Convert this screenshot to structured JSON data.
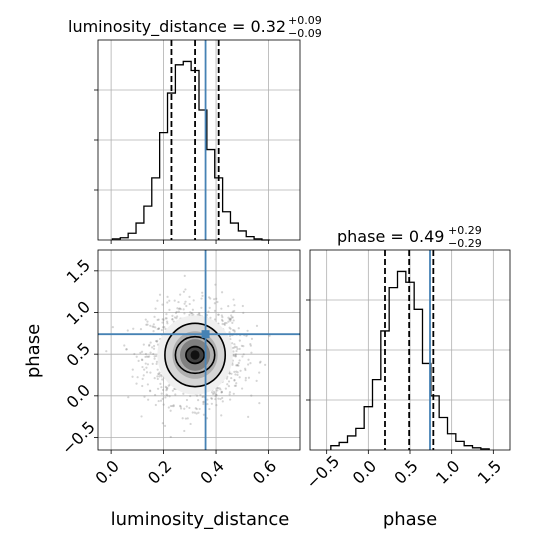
{
  "chart_data": [
    {
      "type": "histogram",
      "panel": "top-left",
      "title": {
        "base": "luminosity_distance = 0.32",
        "sup": "+0.09",
        "sub": "−0.09"
      },
      "x": [
        0.02,
        0.05,
        0.08,
        0.11,
        0.14,
        0.17,
        0.2,
        0.23,
        0.26,
        0.29,
        0.32,
        0.35,
        0.38,
        0.41,
        0.44,
        0.47,
        0.5,
        0.53,
        0.56,
        0.59
      ],
      "counts": [
        1,
        2,
        6,
        15,
        30,
        55,
        95,
        130,
        155,
        158,
        150,
        115,
        80,
        55,
        25,
        15,
        8,
        3,
        1,
        0
      ],
      "xlim": [
        -0.05,
        0.72
      ],
      "quantiles": [
        0.23,
        0.32,
        0.41
      ],
      "truth": 0.36,
      "grid": true
    },
    {
      "type": "histogram",
      "panel": "bottom-right",
      "title": {
        "base": "phase = 0.49",
        "sup": "+0.29",
        "sub": "−0.29"
      },
      "x": [
        -0.4,
        -0.3,
        -0.2,
        -0.1,
        0.0,
        0.1,
        0.2,
        0.3,
        0.4,
        0.5,
        0.6,
        0.7,
        0.8,
        0.9,
        1.0,
        1.1,
        1.2,
        1.3,
        1.4
      ],
      "counts": [
        4,
        7,
        13,
        20,
        40,
        65,
        110,
        150,
        165,
        155,
        130,
        80,
        50,
        30,
        15,
        8,
        4,
        2,
        1
      ],
      "xlim": [
        -0.7,
        1.7
      ],
      "xticks": [
        -0.5,
        0.0,
        0.5,
        1.0,
        1.5
      ],
      "xtick_labels": [
        "−0.5",
        "0.0",
        "0.5",
        "1.0",
        "1.5"
      ],
      "xlabel": "phase",
      "quantiles": [
        0.2,
        0.49,
        0.78
      ],
      "truth": 0.74,
      "grid": true
    },
    {
      "type": "scatter",
      "panel": "bottom-left",
      "xlabel": "luminosity_distance",
      "ylabel": "phase",
      "xlim": [
        -0.05,
        0.72
      ],
      "ylim": [
        -0.65,
        1.75
      ],
      "xticks": [
        0.0,
        0.2,
        0.4,
        0.6
      ],
      "xtick_labels": [
        "0.0",
        "0.2",
        "0.4",
        "0.6"
      ],
      "yticks": [
        -0.5,
        0.0,
        0.5,
        1.0,
        1.5
      ],
      "ytick_labels": [
        "−0.5",
        "0.0",
        "0.5",
        "1.0",
        "1.5"
      ],
      "contour_center": [
        0.32,
        0.49
      ],
      "contour_radii": [
        [
          0.035,
          0.1
        ],
        [
          0.075,
          0.22
        ],
        [
          0.115,
          0.38
        ]
      ],
      "sample_sd": [
        0.09,
        0.29
      ],
      "truth": [
        0.36,
        0.74
      ],
      "grid": true
    }
  ],
  "colors": {
    "truth": "#4682b4",
    "hist": "#000000",
    "points": "#888888",
    "grid": "#b0b0b0"
  }
}
